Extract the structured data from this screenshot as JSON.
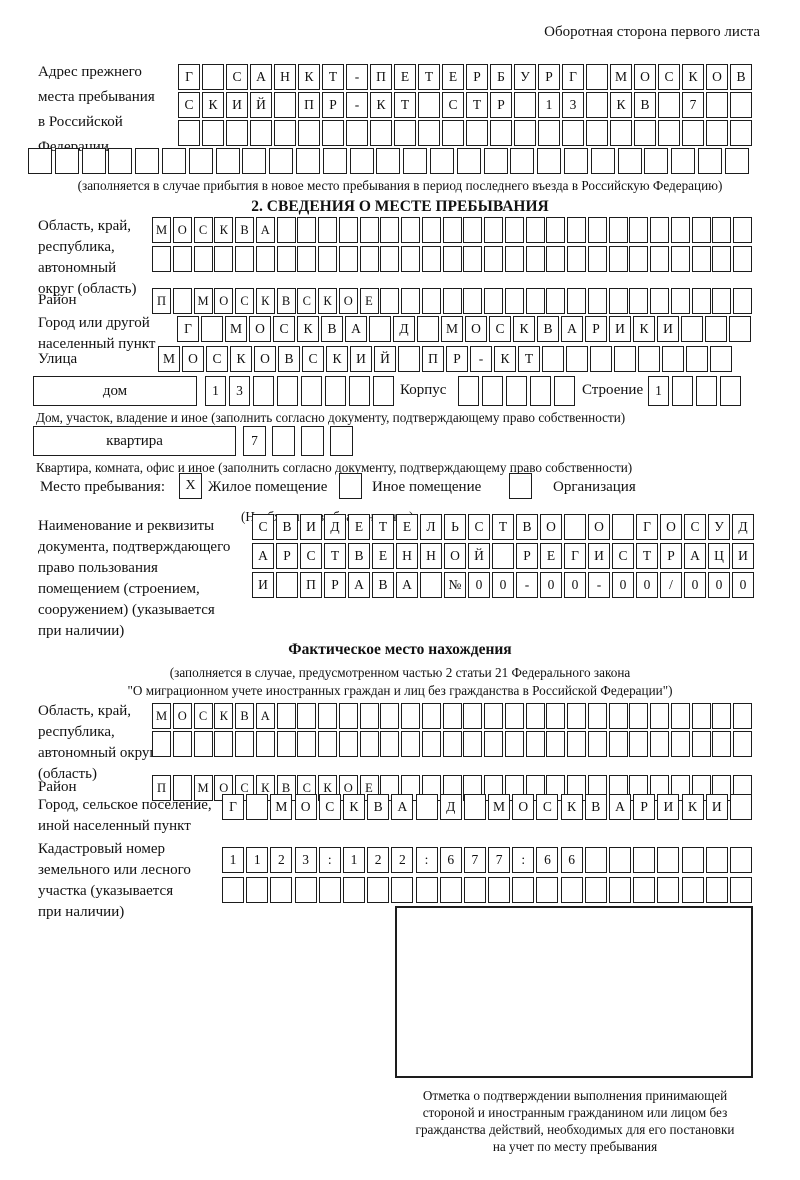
{
  "page": {
    "header_note": "Оборотная сторона первого листа"
  },
  "prev_address": {
    "label_lines": [
      "Адрес прежнего",
      "места пребывания",
      "в Российской",
      "Федерации"
    ],
    "rows": [
      {
        "text": "Г САНКТ-ПЕТЕРБУРГ МОСКОВ",
        "len": 24
      },
      {
        "text": "СКИЙ ПР-КТ СТР 13 КВ 7",
        "len": 24
      },
      {
        "text": "",
        "len": 24
      }
    ],
    "row_full": {
      "text": "",
      "len": 27
    },
    "caption": "(заполняется в случае прибытия в новое место пребывания в период последнего въезда в Российскую Федерацию)"
  },
  "section2": {
    "title": "2. СВЕДЕНИЯ О МЕСТЕ ПРЕБЫВАНИЯ",
    "region": {
      "label_lines": [
        "Область, край,",
        "республика,",
        "автономный",
        "округ (область)"
      ],
      "rows": [
        {
          "text": "МОСКВА",
          "len": 29
        },
        {
          "text": "",
          "len": 29
        }
      ]
    },
    "district": {
      "label": "Район",
      "row": {
        "text": "П МОСКВСКОЕ",
        "len": 29
      }
    },
    "city": {
      "label_lines": [
        "Город или другой",
        "населенный пункт"
      ],
      "row": {
        "text": "Г МОСКВА Д МОСКВАРИКИ",
        "len": 24
      }
    },
    "street": {
      "label": "Улица",
      "row": {
        "text": "МОСКОВСКИЙ ПР-КТ",
        "len": 24
      }
    },
    "house": {
      "label": "дом",
      "row": {
        "text": "13",
        "len": 8
      },
      "korpus_label": "Корпус",
      "korpus_row": {
        "text": "",
        "len": 5
      },
      "stroenie_label": "Строение",
      "stroenie_row": {
        "text": "1",
        "len": 4
      },
      "caption": "Дом, участок, владение и иное (заполнить согласно документу, подтверждающему право собственности)"
    },
    "apartment": {
      "label": "квартира",
      "row": {
        "text": "7",
        "len": 4
      },
      "caption": "Квартира, комната, офис и иное (заполнить согласно документу, подтверждающему право собственности)"
    },
    "stay_type": {
      "label": "Место пребывания:",
      "options": [
        {
          "label": "Жилое помещение",
          "mark": "X"
        },
        {
          "label": "Иное помещение",
          "mark": ""
        },
        {
          "label": "Организация",
          "mark": ""
        }
      ],
      "hint": "(Необходимо выбрать нужное)"
    },
    "doc": {
      "label_lines": [
        "Наименование и реквизиты",
        "документа, подтверждающего",
        "право пользования",
        "помещением (строением,",
        "сооружением) (указывается",
        "при наличии)"
      ],
      "rows": [
        {
          "text": "СВИДЕТЕЛЬСТВО О ГОСУД",
          "len": 21
        },
        {
          "text": "АРСТВЕННОЙ РЕГИСТРАЦИ",
          "len": 21
        },
        {
          "text": "И ПРАВА №00-00-00/000",
          "len": 21
        }
      ]
    }
  },
  "actual_location": {
    "title": "Фактическое место нахождения",
    "caption_lines": [
      "(заполняется в случае, предусмотренном частью 2 статьи 21 Федерального закона",
      "\"О миграционном учете иностранных граждан и лиц без гражданства в Российской Федерации\")"
    ],
    "region": {
      "label_lines": [
        "Область, край,",
        "республика,",
        "автономный округ",
        "(область)"
      ],
      "rows": [
        {
          "text": "МОСКВА",
          "len": 29
        },
        {
          "text": "",
          "len": 29
        }
      ]
    },
    "district": {
      "label": "Район",
      "row": {
        "text": "П МОСКВСКОЕ",
        "len": 29
      }
    },
    "city": {
      "label_lines": [
        "Город, сельское поселение,",
        "иной населенный пункт"
      ],
      "row": {
        "text": "Г МОСКВА Д МОСКВАРИКИ",
        "len": 22
      }
    },
    "cadastral": {
      "label_lines": [
        "Кадастровый номер",
        "земельного или лесного",
        "участка (указывается",
        "при наличии)"
      ],
      "rows": [
        {
          "text": "1123:122:677:66",
          "len": 22
        },
        {
          "text": "",
          "len": 22
        }
      ]
    },
    "stamp_caption_lines": [
      "Отметка о подтверждении выполнения принимающей",
      "стороной и иностранным гражданином или лицом без",
      "гражданства действий, необходимых для его постановки",
      "на учет по месту пребывания"
    ]
  }
}
